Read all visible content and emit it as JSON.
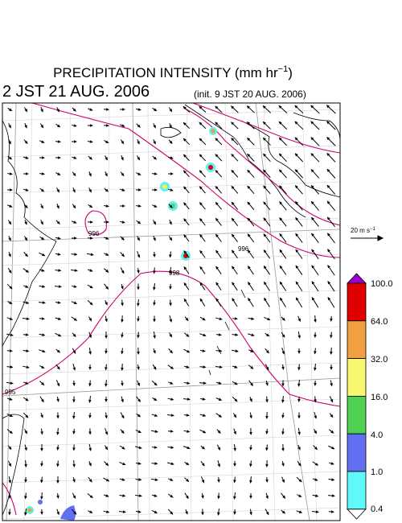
{
  "header": {
    "title": {
      "text": "PRECIPITATION INTENSITY (mm hr",
      "superscript": "−1",
      "suffix": ")"
    },
    "valid_time": "2 JST 21 AUG. 2006",
    "init_time": "(init. 9 JST 20 AUG. 2006)"
  },
  "reference_vector": {
    "text": "20 m s",
    "superscript": "−1"
  },
  "colorbar": {
    "labels": [
      "100.0",
      "64.0",
      "32.0",
      "16.0",
      "4.0",
      "1.0",
      "0.4"
    ]
  },
  "isobar_labels": [
    "996",
    "998",
    "996",
    "995"
  ]
}
